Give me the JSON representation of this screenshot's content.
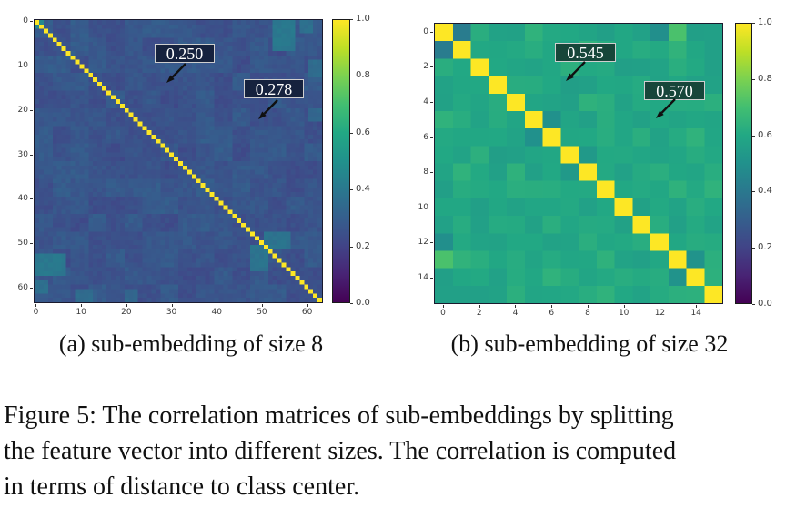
{
  "figure": {
    "caption_lines": [
      "Figure 5: The correlation matrices of sub-embeddings by splitting",
      "the feature vector into different sizes. The correlation is computed",
      "in terms of distance to class center."
    ],
    "subfigures": [
      {
        "label": "a",
        "caption": "(a) sub-embedding of size 8",
        "annotations": [
          {
            "text": "0.250"
          },
          {
            "text": "0.278"
          }
        ]
      },
      {
        "label": "b",
        "caption": "(b) sub-embedding of size 32",
        "annotations": [
          {
            "text": "0.545"
          },
          {
            "text": "0.570"
          }
        ]
      }
    ]
  },
  "colors": {
    "page_background": "#ffffff",
    "annotation_box_a": "#16223e",
    "annotation_box_b": "#17463a",
    "annotation_border": "#cfcfcf",
    "annotation_text": "#ffffff",
    "diagonal": "#fde725",
    "background_a": "#3a548b",
    "background_b": "#22a884",
    "tick_text": "#3a3a3a"
  },
  "colormap_anchors": [
    [
      0.0,
      "#440154"
    ],
    [
      0.1,
      "#482475"
    ],
    [
      0.2,
      "#414487"
    ],
    [
      0.3,
      "#355f8d"
    ],
    [
      0.4,
      "#2a788e"
    ],
    [
      0.5,
      "#21918c"
    ],
    [
      0.6,
      "#22a884"
    ],
    [
      0.7,
      "#42be71"
    ],
    [
      0.8,
      "#7ad151"
    ],
    [
      0.9,
      "#bddf26"
    ],
    [
      1.0,
      "#fde725"
    ]
  ],
  "chart_data": [
    {
      "type": "heatmap",
      "subcaption": "(a) sub-embedding of size 8",
      "matrix_size": 64,
      "sub_embedding_size": 8,
      "diagonal_value": 1.0,
      "base_offdiagonal_value": 0.26,
      "annotated_values": [
        0.25,
        0.278
      ],
      "x_ticks": [
        0,
        10,
        20,
        30,
        40,
        50,
        60
      ],
      "y_ticks": [
        0,
        10,
        20,
        30,
        40,
        50,
        60
      ],
      "colorbar_ticks": [
        "1.0",
        "0.8",
        "0.6",
        "0.4",
        "0.2",
        "0.0"
      ],
      "value_range": [
        0.0,
        1.0
      ],
      "colormap": "viridis",
      "noise": {
        "cell": 0.02,
        "block": 0.03,
        "block_size": 4,
        "seed": 7
      },
      "patches": [
        {
          "row": 0,
          "col": 53,
          "h": 7,
          "w": 5,
          "value": 0.4
        },
        {
          "row": 53,
          "col": 0,
          "h": 5,
          "w": 7,
          "value": 0.4
        },
        {
          "row": 0,
          "col": 59,
          "h": 3,
          "w": 3,
          "value": 0.37
        },
        {
          "row": 59,
          "col": 0,
          "h": 3,
          "w": 3,
          "value": 0.37
        },
        {
          "row": 0,
          "col": 0,
          "h": 2,
          "w": 2,
          "value": 0.48
        },
        {
          "row": 9,
          "col": 61,
          "h": 4,
          "w": 3,
          "value": 0.35
        },
        {
          "row": 61,
          "col": 9,
          "h": 3,
          "w": 4,
          "value": 0.35
        },
        {
          "row": 51,
          "col": 48,
          "h": 6,
          "w": 4,
          "value": 0.38
        },
        {
          "row": 48,
          "col": 51,
          "h": 4,
          "w": 6,
          "value": 0.38
        },
        {
          "row": 20,
          "col": 61,
          "h": 3,
          "w": 3,
          "value": 0.33
        },
        {
          "row": 61,
          "col": 20,
          "h": 3,
          "w": 3,
          "value": 0.33
        }
      ]
    },
    {
      "type": "heatmap",
      "subcaption": "(b) sub-embedding of size 32",
      "matrix_size": 16,
      "sub_embedding_size": 32,
      "diagonal_value": 1.0,
      "base_offdiagonal_value": 0.6,
      "annotated_values": [
        0.545,
        0.57
      ],
      "x_ticks": [
        0,
        2,
        4,
        6,
        8,
        10,
        12,
        14
      ],
      "y_ticks": [
        0,
        2,
        4,
        6,
        8,
        10,
        12,
        14
      ],
      "colorbar_ticks": [
        "1.0",
        "0.8",
        "0.6",
        "0.4",
        "0.2",
        "0.0"
      ],
      "value_range": [
        0.0,
        1.0
      ],
      "colormap": "viridis",
      "noise": {
        "cell": 0.045,
        "block": 0,
        "block_size": 1,
        "seed": 3
      },
      "patches": [
        {
          "row": 0,
          "col": 1,
          "h": 1,
          "w": 1,
          "value": 0.42
        },
        {
          "row": 1,
          "col": 0,
          "h": 1,
          "w": 1,
          "value": 0.42
        },
        {
          "row": 0,
          "col": 13,
          "h": 1,
          "w": 1,
          "value": 0.7
        },
        {
          "row": 13,
          "col": 0,
          "h": 1,
          "w": 1,
          "value": 0.7
        },
        {
          "row": 13,
          "col": 1,
          "h": 1,
          "w": 1,
          "value": 0.66
        },
        {
          "row": 1,
          "col": 13,
          "h": 1,
          "w": 1,
          "value": 0.66
        },
        {
          "row": 0,
          "col": 12,
          "h": 1,
          "w": 1,
          "value": 0.5
        },
        {
          "row": 12,
          "col": 0,
          "h": 1,
          "w": 1,
          "value": 0.5
        },
        {
          "row": 5,
          "col": 6,
          "h": 1,
          "w": 1,
          "value": 0.5
        },
        {
          "row": 6,
          "col": 5,
          "h": 1,
          "w": 1,
          "value": 0.5
        },
        {
          "row": 7,
          "col": 8,
          "h": 1,
          "w": 1,
          "value": 0.52
        },
        {
          "row": 8,
          "col": 7,
          "h": 1,
          "w": 1,
          "value": 0.52
        },
        {
          "row": 13,
          "col": 14,
          "h": 1,
          "w": 1,
          "value": 0.5
        },
        {
          "row": 14,
          "col": 13,
          "h": 1,
          "w": 1,
          "value": 0.5
        }
      ]
    }
  ]
}
